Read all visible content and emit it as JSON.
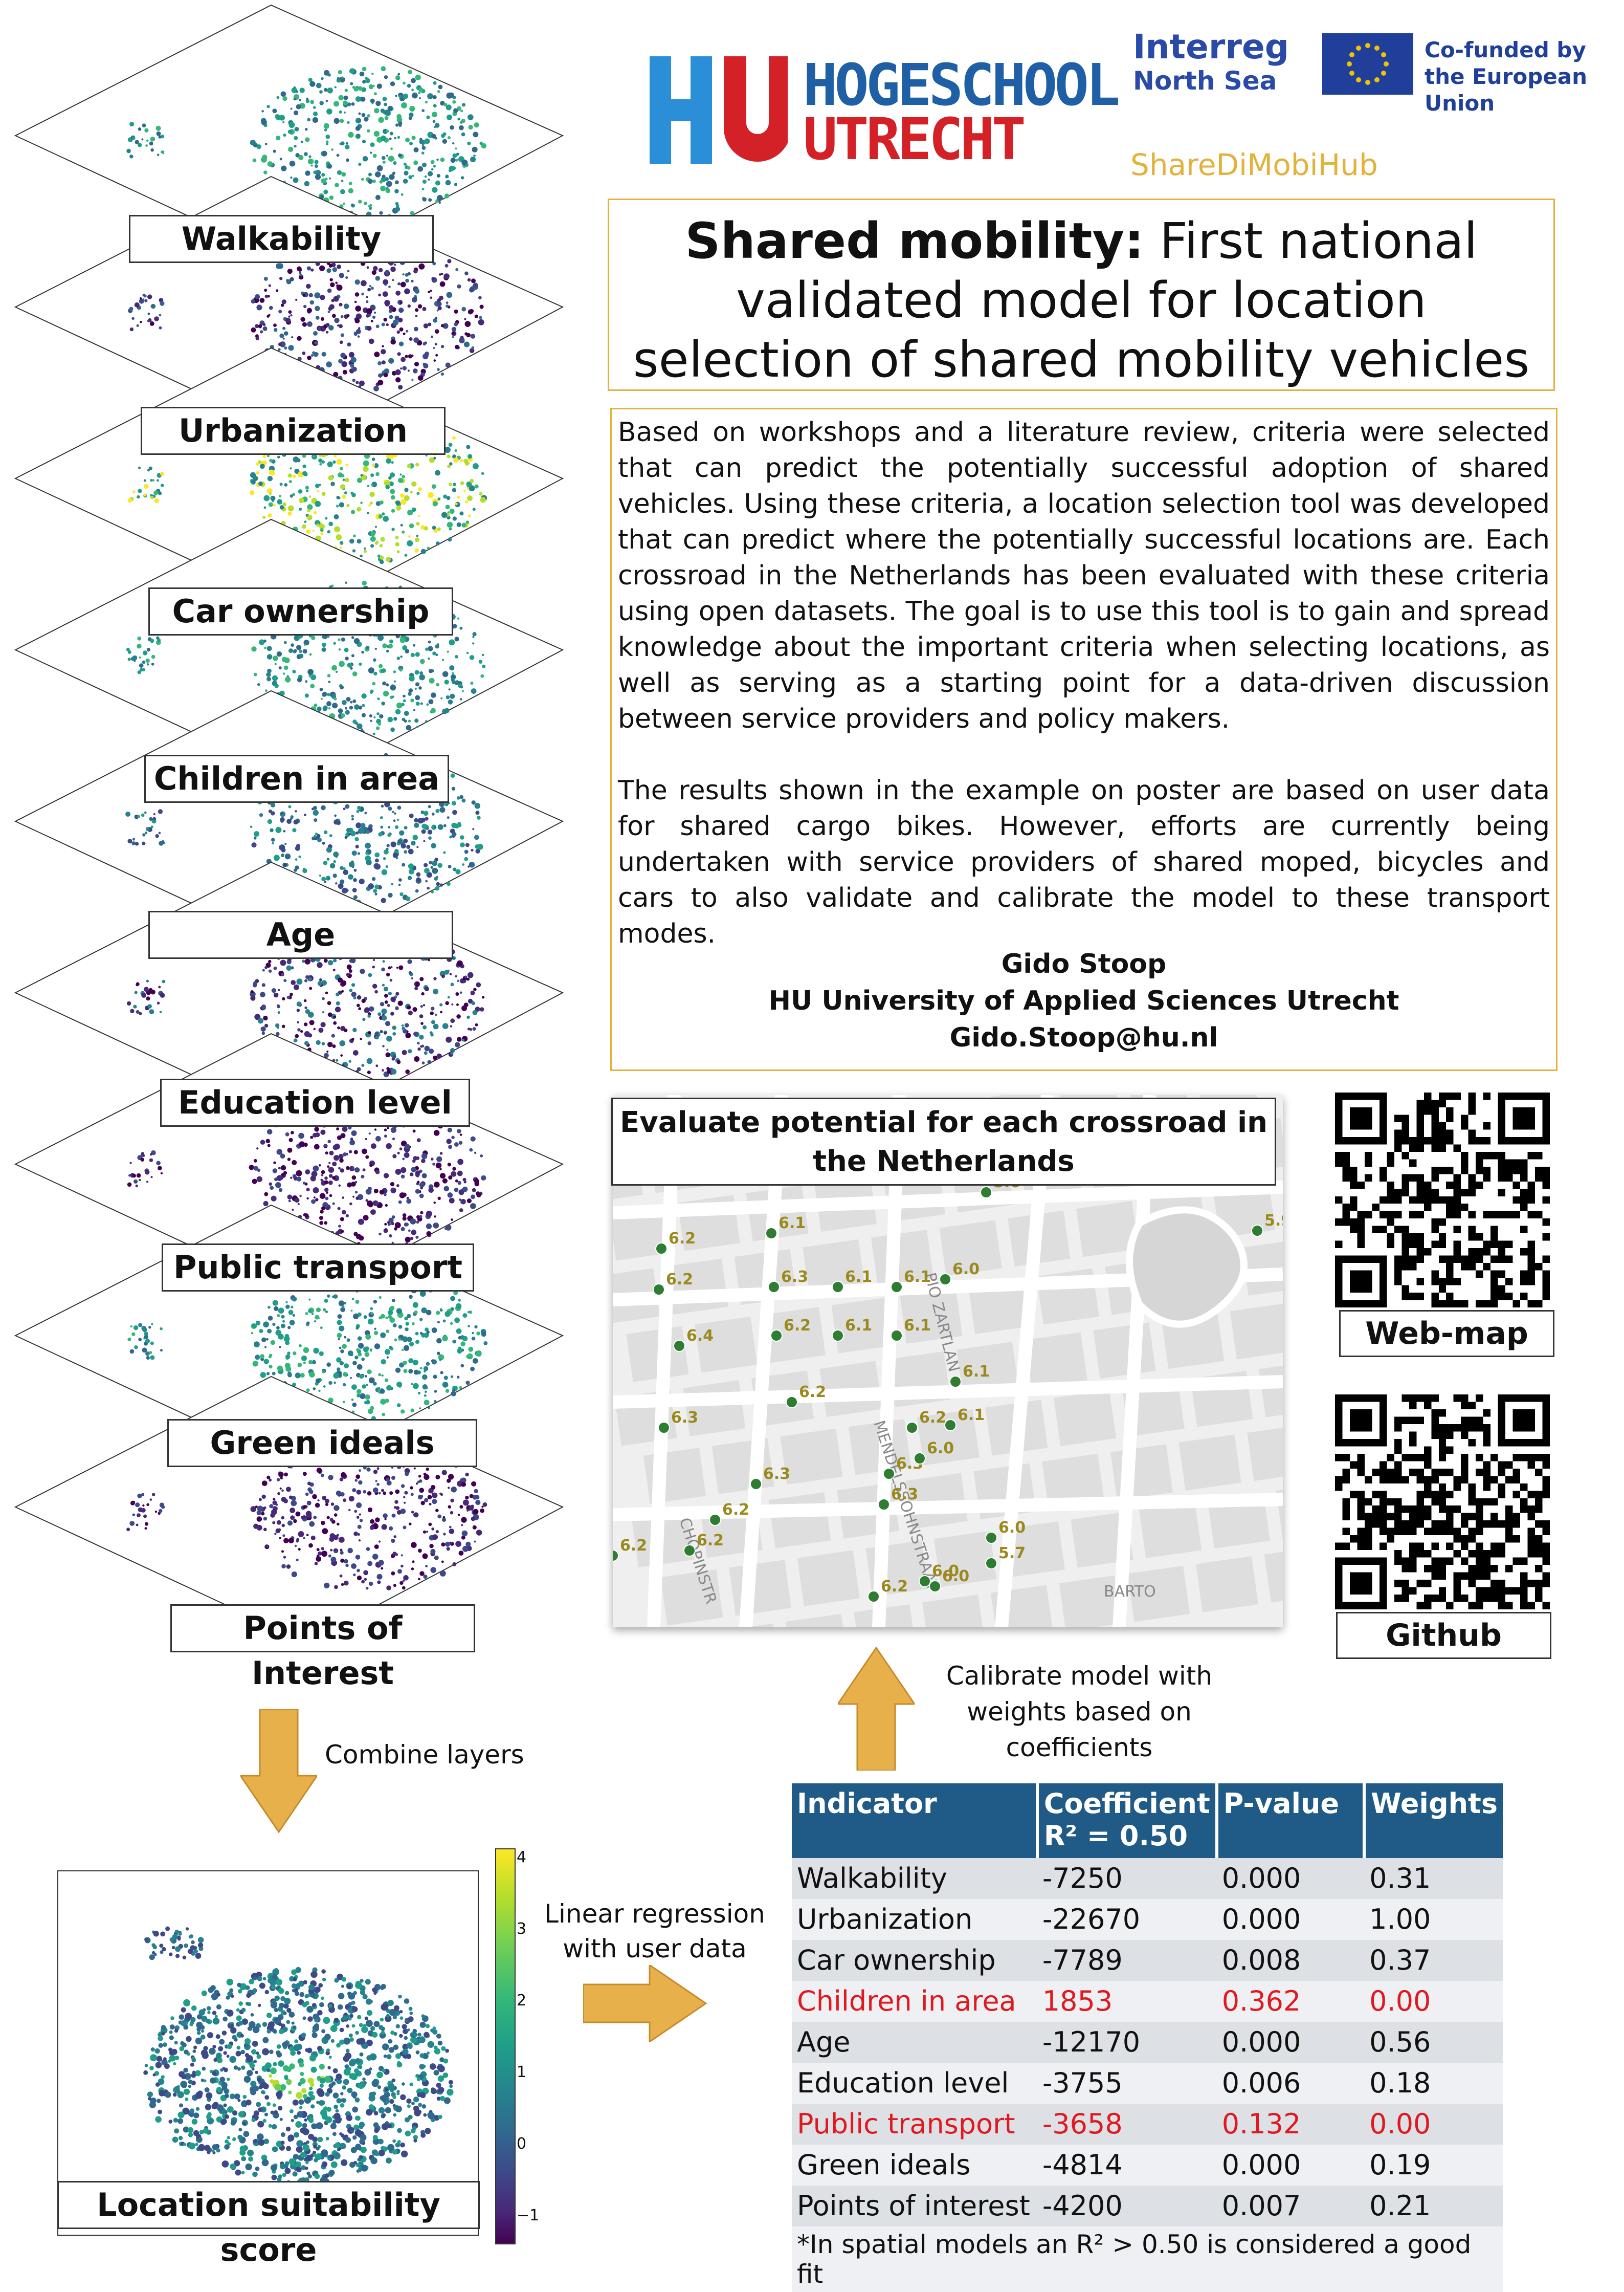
{
  "header": {
    "hu_wordmark_line1": "HOGESCHOOL",
    "hu_wordmark_line2": "UTRECHT",
    "interreg_line1": "Interreg",
    "interreg_line2": "North Sea",
    "eu_line1": "Co-funded by",
    "eu_line2": "the European Union",
    "project": "ShareDiMobiHub"
  },
  "title": {
    "bold": "Shared mobility:",
    "rest": " First national validated model for location selection of shared mobility vehicles"
  },
  "intro": {
    "p1": "Based on workshops and a literature review, criteria were selected that can predict the potentially successful adoption of shared vehicles. Using these criteria, a location selection tool was developed that can predict where the potentially successful locations are. Each crossroad in the Netherlands has been evaluated with these criteria using open datasets. The goal is to use this tool is to gain and spread knowledge about the important criteria when selecting locations, as well as serving as a starting point for a data-driven discussion between service providers and policy makers.",
    "p2": "The results shown in the example on poster are based on user data for shared cargo bikes. However, efforts are currently being undertaken with service providers of shared moped, bicycles and cars to also validate and calibrate the model to these transport modes.",
    "author_name": "Gido Stoop",
    "author_org": "HU University of Applied Sciences Utrecht",
    "author_email": "Gido.Stoop@hu.nl"
  },
  "layers": [
    "Walkability",
    "Urbanization",
    "Car ownership",
    "Children in area",
    "Age",
    "Education level",
    "Public transport",
    "Green ideals",
    "Points of Interest"
  ],
  "combine_label": "Combine layers",
  "result_label": "Location suitability score",
  "colorbar_ticks": [
    "4",
    "3",
    "2",
    "1",
    "0",
    "−1"
  ],
  "regression_label": "Linear regression with user data",
  "calibrate_label": "Calibrate model with weights based on coefficients",
  "map": {
    "title": "Evaluate potential for each crossroad in the Netherlands",
    "street_labels": [
      "PIO ZARTLAN",
      "MENDELSSOHNSTRAAT",
      "CHOPINSTR",
      "BARTO"
    ],
    "points": [
      "6.2",
      "6.1",
      "6.3",
      "6.1",
      "6.1",
      "6.0",
      "6.2",
      "6.2",
      "6.1",
      "6.1",
      "6.4",
      "6.2",
      "6.1",
      "6.2",
      "6.3",
      "6.3",
      "6.3",
      "6.0",
      "6.0",
      "6.3",
      "6.2",
      "5.7",
      "6.2",
      "6.2",
      "6.0",
      "6.0",
      "5.6",
      "5.9",
      "6.1",
      "6.2"
    ]
  },
  "qr": [
    {
      "label": "Web-map"
    },
    {
      "label": "Github"
    }
  ],
  "table": {
    "headers": [
      "Indicator",
      "Coefficient",
      "P-value",
      "Weights"
    ],
    "r2_note": "R² = 0.50",
    "rows": [
      {
        "indicator": "Walkability",
        "coef": "-7250",
        "p": "0.000",
        "w": "0.31"
      },
      {
        "indicator": "Urbanization",
        "coef": "-22670",
        "p": "0.000",
        "w": "1.00"
      },
      {
        "indicator": "Car ownership",
        "coef": "-7789",
        "p": "0.008",
        "w": "0.37"
      },
      {
        "indicator": "Children in area",
        "coef": "1853",
        "p": "0.362",
        "w": "0.00"
      },
      {
        "indicator": "Age",
        "coef": "-12170",
        "p": "0.000",
        "w": "0.56"
      },
      {
        "indicator": "Education level",
        "coef": "-3755",
        "p": "0.006",
        "w": "0.18"
      },
      {
        "indicator": "Public transport",
        "coef": "-3658",
        "p": "0.132",
        "w": "0.00"
      },
      {
        "indicator": "Green ideals",
        "coef": "-4814",
        "p": "0.000",
        "w": "0.19"
      },
      {
        "indicator": "Points of interest",
        "coef": "-4200",
        "p": "0.007",
        "w": "0.21"
      }
    ],
    "highlighted_rows": [
      "Children in area",
      "Public transport"
    ],
    "footnote": "*In spatial models an R² > 0.50 is considered a good fit"
  },
  "colors": {
    "hu_blue": "#2a8fd6",
    "hu_red": "#d42027",
    "hu_text_blue": "#1e5fa5",
    "interreg_blue": "#2a4aa8",
    "eu_blue": "#1f3f9a",
    "eu_gold": "#f2c200",
    "accent_gold": "#e3b23c",
    "table_header": "#1f5b86",
    "insignificant_red": "#e0191f",
    "arrow": "#e8b04a",
    "viridis_low": "#440154",
    "viridis_high": "#fde725"
  }
}
